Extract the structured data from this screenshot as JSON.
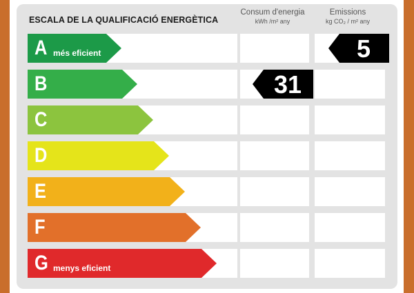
{
  "title": "ESCALA DE LA QUALIFICACIÓ ENERGÈTICA",
  "columns": {
    "consum": {
      "label": "Consum d'energia",
      "unit": "kWh /m² any"
    },
    "emissions": {
      "label": "Emissions",
      "unit": "kg CO₂ / m² any"
    }
  },
  "classes": [
    {
      "letter": "A",
      "sublabel": "més eficient",
      "color": "#1c9a48"
    },
    {
      "letter": "B",
      "sublabel": "",
      "color": "#34ae49"
    },
    {
      "letter": "C",
      "sublabel": "",
      "color": "#8cc43e"
    },
    {
      "letter": "D",
      "sublabel": "",
      "color": "#e5e41a"
    },
    {
      "letter": "E",
      "sublabel": "",
      "color": "#f2b11a"
    },
    {
      "letter": "F",
      "sublabel": "",
      "color": "#e2702a"
    },
    {
      "letter": "G",
      "sublabel": "menys eficient",
      "color": "#e0292b"
    }
  ],
  "consum_rating": {
    "class": "B",
    "value": "31"
  },
  "emissions_rating": {
    "class": "A",
    "value": "5"
  }
}
